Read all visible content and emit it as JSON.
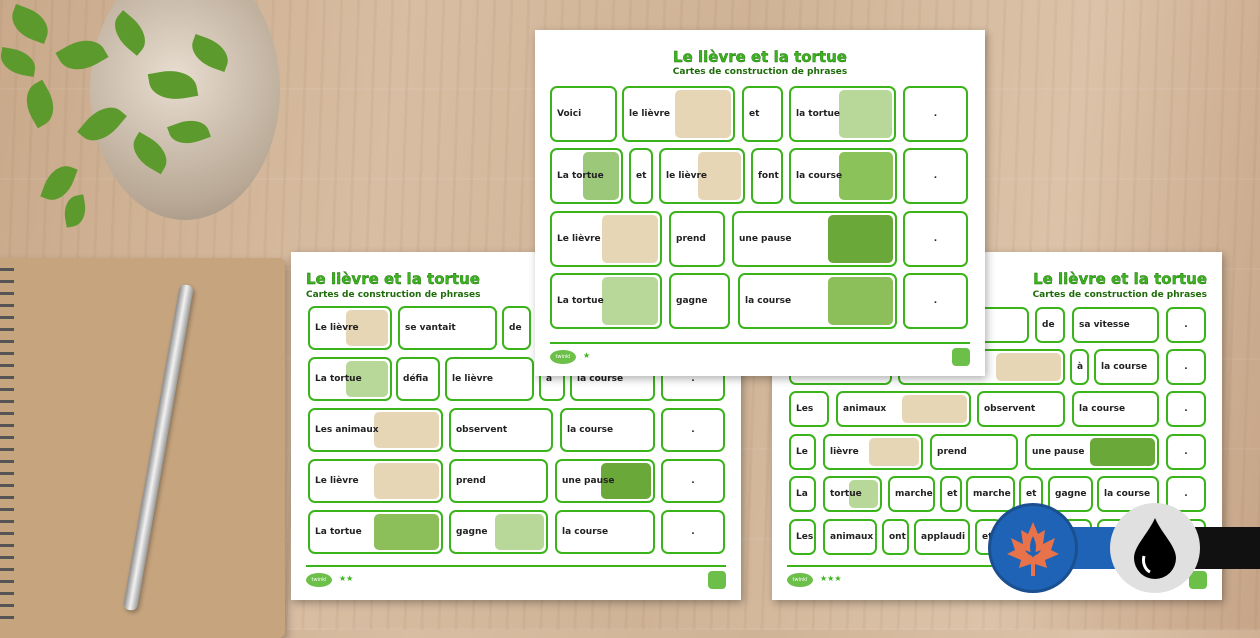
{
  "front_sheet": {
    "title": "Le lièvre et la tortue",
    "subtitle": "Cartes de construction de phrases",
    "logo": "twinkl",
    "stars": "★",
    "rows": [
      [
        "Voici",
        "le lièvre",
        "et",
        "la tortue",
        "."
      ],
      [
        "La tortue",
        "et",
        "le lièvre",
        "font",
        "la course",
        "."
      ],
      [
        "Le lièvre",
        "prend",
        "une pause",
        "."
      ],
      [
        "La tortue",
        "gagne",
        "la course",
        "."
      ]
    ]
  },
  "left_sheet": {
    "title": "Le lièvre et la tortue",
    "subtitle": "Cartes de construction de phrases",
    "logo": "twinkl",
    "stars": "★★",
    "rows": [
      [
        "Le lièvre",
        "se vantait",
        "de",
        "",
        ""
      ],
      [
        "La tortue",
        "défia",
        "le lièvre",
        "à",
        "la course",
        "."
      ],
      [
        "Les animaux",
        "observent",
        "la course",
        "."
      ],
      [
        "Le lièvre",
        "prend",
        "une pause",
        "."
      ],
      [
        "La tortue",
        "gagne",
        "la course",
        "."
      ]
    ]
  },
  "right_sheet": {
    "title": "Le lièvre et la tortue",
    "subtitle": "Cartes de construction de phrases",
    "logo": "twinkl",
    "stars": "★★★",
    "rows": [
      [
        "",
        "",
        "de",
        "sa vitesse",
        "."
      ],
      [
        "",
        "le lièvre",
        "à",
        "la course",
        "."
      ],
      [
        "Les",
        "animaux",
        "observent",
        "la course",
        "."
      ],
      [
        "Le",
        "lièvre",
        "prend",
        "une pause",
        "."
      ],
      [
        "La",
        "tortue",
        "marche",
        "et",
        "marche",
        "et",
        "gagne",
        "la course",
        "."
      ],
      [
        "Les",
        "animaux",
        "ont",
        "applaudi",
        "et",
        "",
        "",
        "",
        "",
        ""
      ]
    ]
  },
  "badges": [
    {
      "icon": "maple-leaf-fleur-de-lis-icon",
      "color": "#1e63b5",
      "accent": "#e8734a"
    },
    {
      "icon": "ink-drop-icon",
      "color": "#e0e0e0",
      "accent": "#000000"
    }
  ],
  "colors": {
    "accent": "#3bb41b"
  }
}
